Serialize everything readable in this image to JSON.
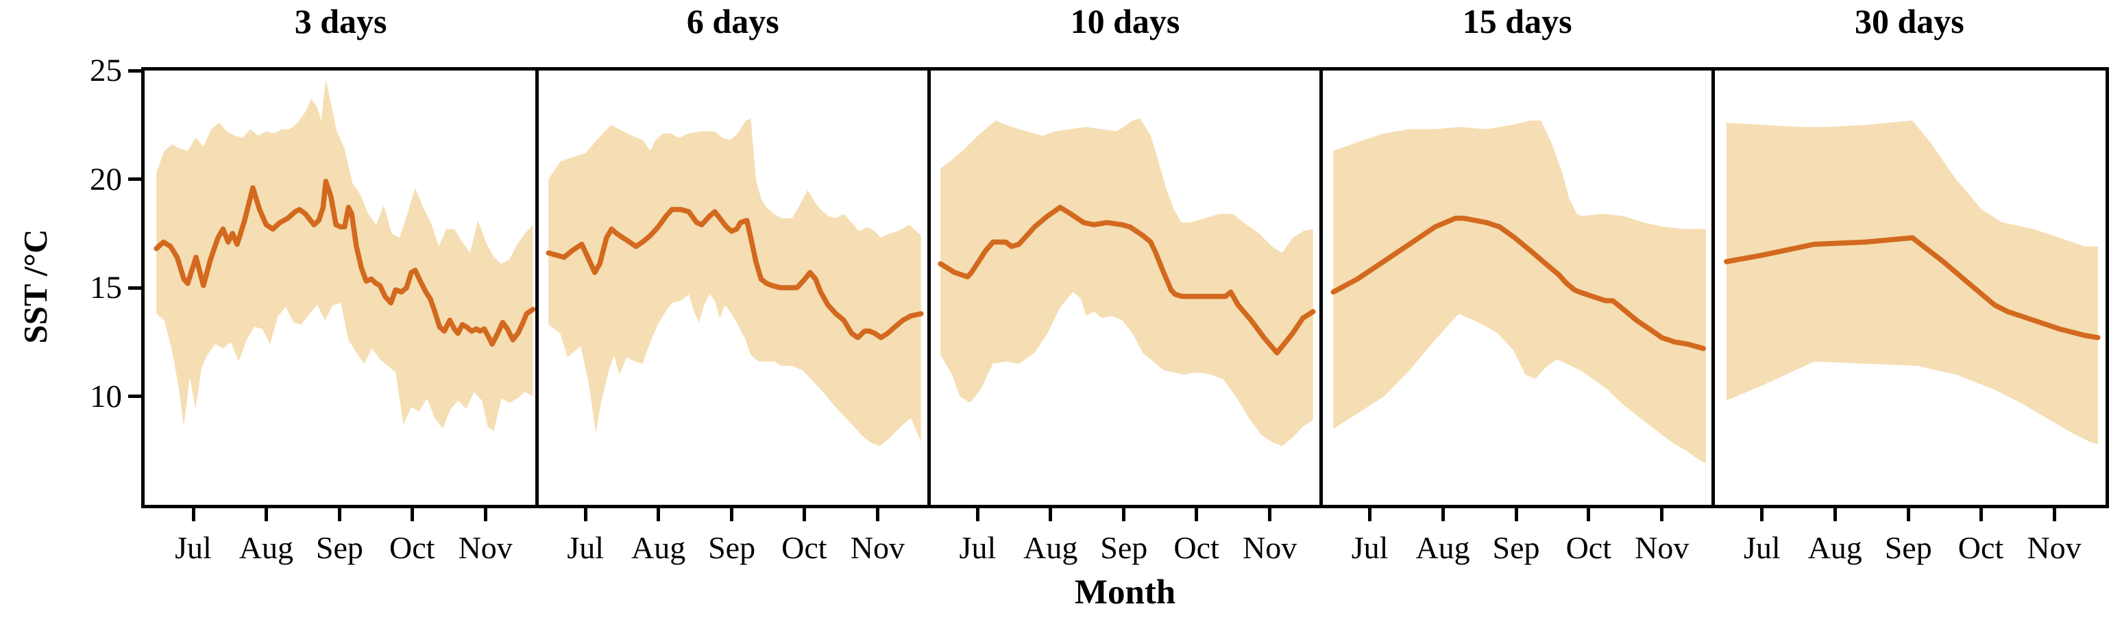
{
  "axes": {
    "y_label": "SST /°C",
    "x_label": "Month",
    "y_ticks": [
      25,
      20,
      15,
      10
    ],
    "y_range": [
      5,
      25
    ],
    "x_tick_labels": [
      "Jul",
      "Aug",
      "Sep",
      "Oct",
      "Nov"
    ],
    "x_tick_positions": [
      0.124,
      0.31,
      0.497,
      0.682,
      0.869
    ]
  },
  "colors": {
    "line": "#d2691e",
    "band": "#f5deb3",
    "axis": "#000000",
    "text": "#000000",
    "background": "#ffffff"
  },
  "chart_data": {
    "type": "line",
    "title": "",
    "xlabel": "Month",
    "ylabel": "SST /°C",
    "ylim": [
      5,
      25
    ],
    "grid": false,
    "legend": false,
    "band_meaning": "min-max envelope around mean SST",
    "panels": [
      {
        "title": "3 days",
        "x": [
          0.03,
          0.048,
          0.066,
          0.083,
          0.1,
          0.11,
          0.131,
          0.15,
          0.168,
          0.187,
          0.2,
          0.213,
          0.224,
          0.236,
          0.255,
          0.276,
          0.293,
          0.31,
          0.327,
          0.345,
          0.365,
          0.384,
          0.395,
          0.41,
          0.423,
          0.432,
          0.444,
          0.455,
          0.462,
          0.475,
          0.488,
          0.5,
          0.51,
          0.52,
          0.528,
          0.54,
          0.553,
          0.565,
          0.578,
          0.59,
          0.6,
          0.613,
          0.628,
          0.64,
          0.655,
          0.668,
          0.68,
          0.69,
          0.703,
          0.717,
          0.728,
          0.74,
          0.752,
          0.764,
          0.778,
          0.79,
          0.799,
          0.81,
          0.82,
          0.834,
          0.846,
          0.855,
          0.866,
          0.878,
          0.886,
          0.898,
          0.913,
          0.925,
          0.939,
          0.952,
          0.965,
          0.974,
          0.99
        ],
        "mean": [
          16.8,
          17.1,
          16.9,
          16.4,
          15.4,
          15.2,
          16.4,
          15.1,
          16.3,
          17.3,
          17.7,
          17.1,
          17.5,
          17.0,
          18.1,
          19.6,
          18.6,
          17.9,
          17.7,
          18.0,
          18.2,
          18.5,
          18.6,
          18.4,
          18.1,
          17.9,
          18.1,
          18.7,
          19.9,
          19.2,
          17.9,
          17.8,
          17.8,
          18.7,
          18.4,
          16.9,
          15.9,
          15.3,
          15.4,
          15.2,
          15.1,
          14.6,
          14.3,
          14.9,
          14.8,
          15.0,
          15.7,
          15.8,
          15.3,
          14.8,
          14.5,
          13.9,
          13.2,
          13.0,
          13.5,
          13.1,
          12.9,
          13.3,
          13.2,
          13.0,
          13.1,
          13.0,
          13.1,
          12.7,
          12.4,
          12.8,
          13.4,
          13.1,
          12.6,
          12.9,
          13.4,
          13.8,
          14.0
        ],
        "band_x_hi": [
          0.03,
          0.05,
          0.07,
          0.09,
          0.11,
          0.13,
          0.15,
          0.17,
          0.19,
          0.21,
          0.23,
          0.25,
          0.27,
          0.29,
          0.31,
          0.33,
          0.35,
          0.37,
          0.39,
          0.41,
          0.425,
          0.44,
          0.45,
          0.462,
          0.475,
          0.49,
          0.51,
          0.53,
          0.55,
          0.57,
          0.59,
          0.61,
          0.63,
          0.65,
          0.67,
          0.69,
          0.71,
          0.73,
          0.75,
          0.77,
          0.79,
          0.81,
          0.83,
          0.85,
          0.87,
          0.89,
          0.91,
          0.93,
          0.95,
          0.97,
          0.99
        ],
        "hi": [
          20.3,
          21.3,
          21.6,
          21.4,
          21.3,
          21.9,
          21.5,
          22.3,
          22.6,
          22.2,
          22.0,
          21.9,
          22.3,
          22.0,
          22.2,
          22.1,
          22.3,
          22.3,
          22.6,
          23.1,
          23.7,
          23.3,
          22.7,
          24.6,
          23.5,
          22.2,
          21.4,
          19.8,
          19.3,
          18.4,
          17.9,
          18.8,
          17.5,
          17.3,
          18.4,
          19.6,
          18.7,
          18.0,
          16.9,
          17.7,
          17.7,
          17.1,
          16.6,
          18.1,
          17.1,
          16.4,
          16.1,
          16.3,
          17.0,
          17.5,
          17.9
        ],
        "band_x_lo": [
          0.03,
          0.05,
          0.07,
          0.085,
          0.1,
          0.115,
          0.13,
          0.145,
          0.16,
          0.18,
          0.2,
          0.22,
          0.24,
          0.26,
          0.28,
          0.3,
          0.32,
          0.34,
          0.36,
          0.38,
          0.4,
          0.42,
          0.44,
          0.46,
          0.48,
          0.5,
          0.52,
          0.54,
          0.56,
          0.58,
          0.6,
          0.62,
          0.64,
          0.66,
          0.68,
          0.7,
          0.72,
          0.74,
          0.76,
          0.78,
          0.8,
          0.82,
          0.84,
          0.86,
          0.875,
          0.89,
          0.91,
          0.93,
          0.95,
          0.97,
          0.99
        ],
        "lo": [
          13.8,
          13.5,
          12.1,
          10.6,
          8.6,
          10.9,
          9.4,
          11.3,
          11.9,
          12.4,
          12.2,
          12.5,
          11.6,
          12.6,
          13.2,
          13.1,
          12.4,
          13.7,
          14.1,
          13.4,
          13.3,
          13.8,
          14.2,
          13.5,
          14.2,
          14.3,
          12.6,
          12.0,
          11.5,
          12.2,
          11.7,
          11.4,
          11.1,
          8.7,
          9.5,
          9.3,
          9.9,
          9.0,
          8.5,
          9.4,
          9.8,
          9.4,
          10.2,
          9.8,
          8.6,
          8.4,
          9.9,
          9.7,
          9.9,
          10.2,
          10.0
        ]
      },
      {
        "title": "6 days",
        "x": [
          0.03,
          0.07,
          0.09,
          0.115,
          0.128,
          0.148,
          0.161,
          0.178,
          0.191,
          0.204,
          0.22,
          0.237,
          0.253,
          0.27,
          0.29,
          0.31,
          0.33,
          0.345,
          0.368,
          0.388,
          0.408,
          0.421,
          0.441,
          0.454,
          0.467,
          0.484,
          0.497,
          0.51,
          0.52,
          0.536,
          0.546,
          0.559,
          0.572,
          0.586,
          0.6,
          0.62,
          0.645,
          0.664,
          0.684,
          0.697,
          0.711,
          0.724,
          0.743,
          0.763,
          0.783,
          0.803,
          0.819,
          0.836,
          0.849,
          0.862,
          0.878,
          0.895,
          0.914,
          0.934,
          0.954,
          0.98
        ],
        "mean": [
          16.6,
          16.4,
          16.7,
          17.0,
          16.5,
          15.7,
          16.1,
          17.3,
          17.7,
          17.5,
          17.3,
          17.1,
          16.9,
          17.1,
          17.4,
          17.8,
          18.3,
          18.6,
          18.6,
          18.5,
          18.0,
          17.9,
          18.3,
          18.5,
          18.2,
          17.8,
          17.6,
          17.7,
          18.0,
          18.1,
          17.3,
          16.2,
          15.4,
          15.2,
          15.1,
          15.0,
          15.0,
          15.0,
          15.4,
          15.7,
          15.4,
          14.8,
          14.2,
          13.8,
          13.5,
          12.9,
          12.7,
          13.0,
          13.0,
          12.9,
          12.7,
          12.9,
          13.2,
          13.5,
          13.7,
          13.8
        ],
        "band_x_hi": [
          0.03,
          0.06,
          0.09,
          0.125,
          0.158,
          0.19,
          0.21,
          0.243,
          0.27,
          0.29,
          0.303,
          0.322,
          0.342,
          0.362,
          0.388,
          0.42,
          0.454,
          0.474,
          0.493,
          0.513,
          0.533,
          0.546,
          0.559,
          0.572,
          0.586,
          0.605,
          0.625,
          0.651,
          0.671,
          0.691,
          0.711,
          0.724,
          0.743,
          0.763,
          0.783,
          0.803,
          0.822,
          0.842,
          0.862,
          0.878,
          0.9,
          0.92,
          0.95,
          0.98
        ],
        "hi": [
          20.0,
          20.8,
          21.0,
          21.2,
          21.9,
          22.5,
          22.3,
          22.0,
          21.8,
          21.3,
          21.8,
          22.1,
          22.1,
          21.9,
          22.1,
          22.2,
          22.2,
          21.9,
          21.8,
          22.1,
          22.7,
          22.8,
          20.0,
          19.1,
          18.7,
          18.4,
          18.2,
          18.2,
          18.8,
          19.5,
          18.9,
          18.6,
          18.3,
          18.2,
          18.4,
          18.0,
          17.6,
          17.8,
          17.6,
          17.3,
          17.5,
          17.6,
          17.9,
          17.4
        ],
        "band_x_lo": [
          0.03,
          0.06,
          0.079,
          0.099,
          0.112,
          0.132,
          0.151,
          0.164,
          0.184,
          0.197,
          0.211,
          0.23,
          0.25,
          0.27,
          0.29,
          0.309,
          0.329,
          0.345,
          0.368,
          0.388,
          0.401,
          0.414,
          0.427,
          0.441,
          0.454,
          0.467,
          0.48,
          0.493,
          0.513,
          0.533,
          0.546,
          0.566,
          0.605,
          0.625,
          0.651,
          0.678,
          0.704,
          0.73,
          0.757,
          0.783,
          0.809,
          0.829,
          0.849,
          0.875,
          0.901,
          0.928,
          0.954,
          0.98
        ],
        "lo": [
          13.3,
          12.9,
          11.8,
          12.1,
          12.3,
          10.7,
          8.3,
          9.7,
          11.2,
          11.9,
          11.0,
          11.8,
          11.6,
          11.5,
          12.5,
          13.3,
          13.9,
          14.3,
          14.4,
          14.7,
          13.9,
          13.4,
          14.2,
          14.7,
          14.4,
          13.6,
          14.2,
          13.9,
          13.3,
          12.6,
          11.9,
          11.6,
          11.6,
          11.4,
          11.4,
          11.2,
          10.7,
          10.2,
          9.6,
          9.1,
          8.6,
          8.2,
          7.9,
          7.7,
          8.1,
          8.6,
          9.0,
          7.9
        ]
      },
      {
        "title": "10 days",
        "x": [
          0.03,
          0.066,
          0.099,
          0.109,
          0.145,
          0.164,
          0.197,
          0.211,
          0.23,
          0.27,
          0.303,
          0.335,
          0.362,
          0.395,
          0.421,
          0.454,
          0.493,
          0.513,
          0.546,
          0.566,
          0.579,
          0.599,
          0.618,
          0.628,
          0.645,
          0.684,
          0.724,
          0.757,
          0.77,
          0.789,
          0.822,
          0.855,
          0.888,
          0.928,
          0.954,
          0.98
        ],
        "mean": [
          16.1,
          15.7,
          15.5,
          15.7,
          16.7,
          17.1,
          17.1,
          16.9,
          17.0,
          17.8,
          18.3,
          18.7,
          18.4,
          18.0,
          17.9,
          18.0,
          17.9,
          17.8,
          17.4,
          17.1,
          16.6,
          15.7,
          14.9,
          14.7,
          14.6,
          14.6,
          14.6,
          14.6,
          14.8,
          14.2,
          13.5,
          12.7,
          12.0,
          12.9,
          13.6,
          13.9
        ],
        "band_x_hi": [
          0.03,
          0.053,
          0.086,
          0.125,
          0.171,
          0.197,
          0.23,
          0.27,
          0.29,
          0.322,
          0.362,
          0.401,
          0.441,
          0.48,
          0.52,
          0.539,
          0.566,
          0.586,
          0.605,
          0.625,
          0.645,
          0.664,
          0.704,
          0.743,
          0.776,
          0.803,
          0.842,
          0.875,
          0.901,
          0.928,
          0.954,
          0.98
        ],
        "hi": [
          20.5,
          20.8,
          21.3,
          22.0,
          22.7,
          22.5,
          22.3,
          22.1,
          22.0,
          22.2,
          22.3,
          22.4,
          22.3,
          22.2,
          22.7,
          22.8,
          22.0,
          20.8,
          19.6,
          18.6,
          18.0,
          18.0,
          18.2,
          18.4,
          18.4,
          18.0,
          17.5,
          16.9,
          16.6,
          17.3,
          17.6,
          17.7
        ],
        "band_x_lo": [
          0.03,
          0.059,
          0.079,
          0.105,
          0.132,
          0.164,
          0.197,
          0.23,
          0.27,
          0.303,
          0.335,
          0.368,
          0.388,
          0.401,
          0.421,
          0.441,
          0.467,
          0.493,
          0.52,
          0.546,
          0.572,
          0.599,
          0.625,
          0.651,
          0.684,
          0.717,
          0.75,
          0.783,
          0.816,
          0.849,
          0.875,
          0.901,
          0.928,
          0.954,
          0.98
        ],
        "lo": [
          11.9,
          11.0,
          10.0,
          9.7,
          10.3,
          11.5,
          11.6,
          11.5,
          12.0,
          12.9,
          14.1,
          14.8,
          14.5,
          13.7,
          13.9,
          13.6,
          13.7,
          13.5,
          12.9,
          12.0,
          11.6,
          11.2,
          11.1,
          11.0,
          11.1,
          11.0,
          10.8,
          10.0,
          9.0,
          8.2,
          7.9,
          7.7,
          8.1,
          8.6,
          8.9
        ]
      },
      {
        "title": "15 days",
        "x": [
          0.03,
          0.092,
          0.158,
          0.224,
          0.29,
          0.342,
          0.362,
          0.421,
          0.454,
          0.493,
          0.533,
          0.572,
          0.605,
          0.625,
          0.645,
          0.658,
          0.691,
          0.724,
          0.743,
          0.77,
          0.803,
          0.836,
          0.868,
          0.901,
          0.934,
          0.974
        ],
        "mean": [
          14.8,
          15.4,
          16.2,
          17.0,
          17.8,
          18.2,
          18.2,
          18.0,
          17.8,
          17.3,
          16.7,
          16.1,
          15.6,
          15.2,
          14.9,
          14.8,
          14.6,
          14.4,
          14.4,
          14.0,
          13.5,
          13.1,
          12.7,
          12.5,
          12.4,
          12.2
        ],
        "band_x_hi": [
          0.03,
          0.092,
          0.158,
          0.224,
          0.29,
          0.355,
          0.421,
          0.487,
          0.533,
          0.559,
          0.586,
          0.612,
          0.632,
          0.651,
          0.664,
          0.717,
          0.77,
          0.822,
          0.875,
          0.928,
          0.98
        ],
        "hi": [
          21.3,
          21.7,
          22.1,
          22.3,
          22.3,
          22.4,
          22.3,
          22.5,
          22.7,
          22.7,
          21.7,
          20.4,
          19.1,
          18.4,
          18.3,
          18.4,
          18.3,
          18.0,
          17.8,
          17.7,
          17.7
        ],
        "band_x_lo": [
          0.03,
          0.1,
          0.16,
          0.22,
          0.29,
          0.35,
          0.4,
          0.45,
          0.49,
          0.52,
          0.545,
          0.57,
          0.6,
          0.625,
          0.66,
          0.7,
          0.73,
          0.77,
          0.82,
          0.87,
          0.9,
          0.93,
          0.96,
          0.98
        ],
        "lo": [
          8.5,
          9.3,
          10.0,
          11.1,
          12.6,
          13.8,
          13.4,
          12.9,
          12.1,
          11.0,
          10.8,
          11.3,
          11.7,
          11.5,
          11.2,
          10.7,
          10.3,
          9.6,
          8.9,
          8.2,
          7.8,
          7.5,
          7.1,
          6.9
        ]
      },
      {
        "title": "30 days",
        "x": [
          0.033,
          0.125,
          0.257,
          0.388,
          0.507,
          0.586,
          0.651,
          0.717,
          0.75,
          0.816,
          0.882,
          0.947,
          0.98
        ],
        "mean": [
          16.2,
          16.5,
          17.0,
          17.1,
          17.3,
          16.2,
          15.2,
          14.2,
          13.9,
          13.5,
          13.1,
          12.8,
          12.7
        ],
        "band_x_hi": [
          0.033,
          0.125,
          0.224,
          0.29,
          0.388,
          0.507,
          0.553,
          0.618,
          0.684,
          0.737,
          0.816,
          0.882,
          0.947,
          0.98
        ],
        "hi": [
          22.6,
          22.5,
          22.4,
          22.4,
          22.5,
          22.7,
          21.7,
          20.0,
          18.6,
          18.0,
          17.7,
          17.3,
          16.9,
          16.9
        ],
        "band_x_lo": [
          0.033,
          0.125,
          0.257,
          0.388,
          0.52,
          0.618,
          0.717,
          0.783,
          0.849,
          0.915,
          0.96,
          0.98
        ],
        "lo": [
          9.8,
          10.5,
          11.6,
          11.5,
          11.4,
          11.0,
          10.3,
          9.7,
          9.0,
          8.3,
          7.9,
          7.8
        ]
      }
    ]
  }
}
